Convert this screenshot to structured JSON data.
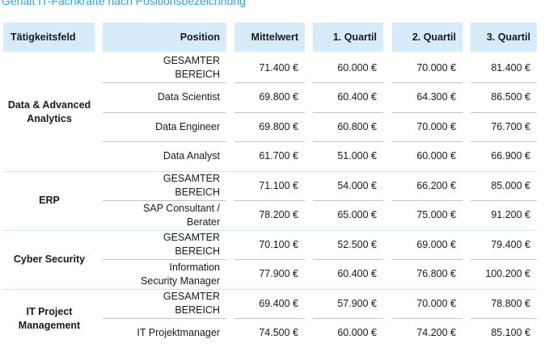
{
  "title": "Gehalt IT-Fachkräfte nach Positionsbezeichnung",
  "headers": [
    "Tätigkeitsfeld",
    "Position",
    "Mittelwert",
    "1. Quartil",
    "2. Quartil",
    "3. Quartil"
  ],
  "groups": [
    {
      "field": "Data & Advanced Analytics",
      "rows": [
        {
          "position": "GESAMTER BEREICH",
          "mittelwert": "71.400 €",
          "q1": "60.000 €",
          "q2": "70.000 €",
          "q3": "81.400 €"
        },
        {
          "position": "Data Scientist",
          "mittelwert": "69.800 €",
          "q1": "60.400 €",
          "q2": "64.300 €",
          "q3": "86.500 €"
        },
        {
          "position": "Data Engineer",
          "mittelwert": "69.800 €",
          "q1": "60.800 €",
          "q2": "70.000 €",
          "q3": "76.700 €"
        },
        {
          "position": "Data Analyst",
          "mittelwert": "61.700 €",
          "q1": "51.000 €",
          "q2": "60.000 €",
          "q3": "66.900 €"
        }
      ]
    },
    {
      "field": "ERP",
      "rows": [
        {
          "position": "GESAMTER BEREICH",
          "mittelwert": "71.100 €",
          "q1": "54.000 €",
          "q2": "66.200 €",
          "q3": "85.000 €"
        },
        {
          "position": "SAP Consultant / Berater",
          "mittelwert": "78.200 €",
          "q1": "65.000 €",
          "q2": "75.000 €",
          "q3": "91.200 €"
        }
      ]
    },
    {
      "field": "Cyber Security",
      "rows": [
        {
          "position": "GESAMTER BEREICH",
          "mittelwert": "70.100 €",
          "q1": "52.500 €",
          "q2": "69.000 €",
          "q3": "79.400 €"
        },
        {
          "position": "Information Security Manager",
          "mittelwert": "77.900 €",
          "q1": "60.400 €",
          "q2": "76.800 €",
          "q3": "100.200 €"
        }
      ]
    },
    {
      "field": "IT Project Management",
      "rows": [
        {
          "position": "GESAMTER BEREICH",
          "mittelwert": "69.400 €",
          "q1": "57.900 €",
          "q2": "70.000 €",
          "q3": "78.800 €"
        },
        {
          "position": "IT Projektmanager",
          "mittelwert": "74.500 €",
          "q1": "60.000 €",
          "q2": "74.200 €",
          "q3": "85.100 €"
        }
      ]
    }
  ]
}
